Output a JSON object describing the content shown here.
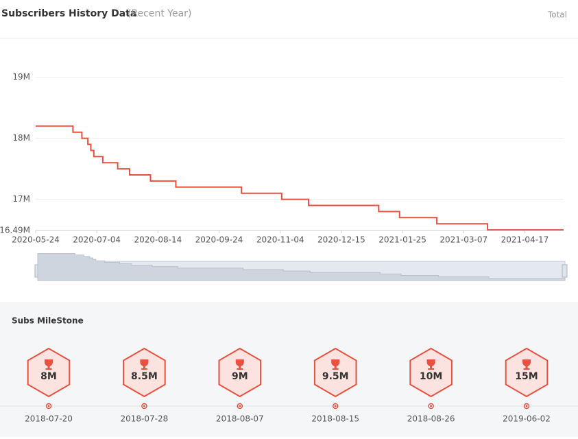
{
  "header": {
    "title": "Subscribers History Data",
    "subtitle": "(Recent Year)",
    "mode": "Total"
  },
  "chart_data": {
    "type": "line",
    "step": "after",
    "color": "#e8503f",
    "x": [
      "2020-05-24",
      "2020-06-18",
      "2020-06-24",
      "2020-06-28",
      "2020-06-30",
      "2020-07-02",
      "2020-07-08",
      "2020-07-18",
      "2020-07-26",
      "2020-08-09",
      "2020-08-26",
      "2020-10-09",
      "2020-11-05",
      "2020-11-23",
      "2021-01-09",
      "2021-01-23",
      "2021-02-17",
      "2021-03-23",
      "2021-05-13"
    ],
    "values": [
      18.2,
      18.1,
      18.0,
      17.9,
      17.8,
      17.7,
      17.6,
      17.5,
      17.4,
      17.3,
      17.2,
      17.1,
      17.0,
      16.9,
      16.8,
      16.7,
      16.6,
      16.5,
      16.5
    ],
    "xlim": [
      "2020-05-24",
      "2021-05-13"
    ],
    "xticks": [
      "2020-05-24",
      "2020-07-04",
      "2020-08-14",
      "2020-09-24",
      "2020-11-04",
      "2020-12-15",
      "2021-01-25",
      "2021-03-07",
      "2021-04-17"
    ],
    "ylim": [
      16.49,
      19.31
    ],
    "yticks": [
      {
        "value": 16.49,
        "label": "16.49M"
      },
      {
        "value": 17,
        "label": "17M"
      },
      {
        "value": 18,
        "label": "18M"
      },
      {
        "value": 19,
        "label": "19M"
      }
    ],
    "grid": true
  },
  "milestones": {
    "title": "Subs MileStone",
    "items": [
      {
        "label": "8M",
        "date": "2018-07-20"
      },
      {
        "label": "8.5M",
        "date": "2018-07-28"
      },
      {
        "label": "9M",
        "date": "2018-08-07"
      },
      {
        "label": "9.5M",
        "date": "2018-08-15"
      },
      {
        "label": "10M",
        "date": "2018-08-26"
      },
      {
        "label": "15M",
        "date": "2019-06-02"
      }
    ]
  }
}
